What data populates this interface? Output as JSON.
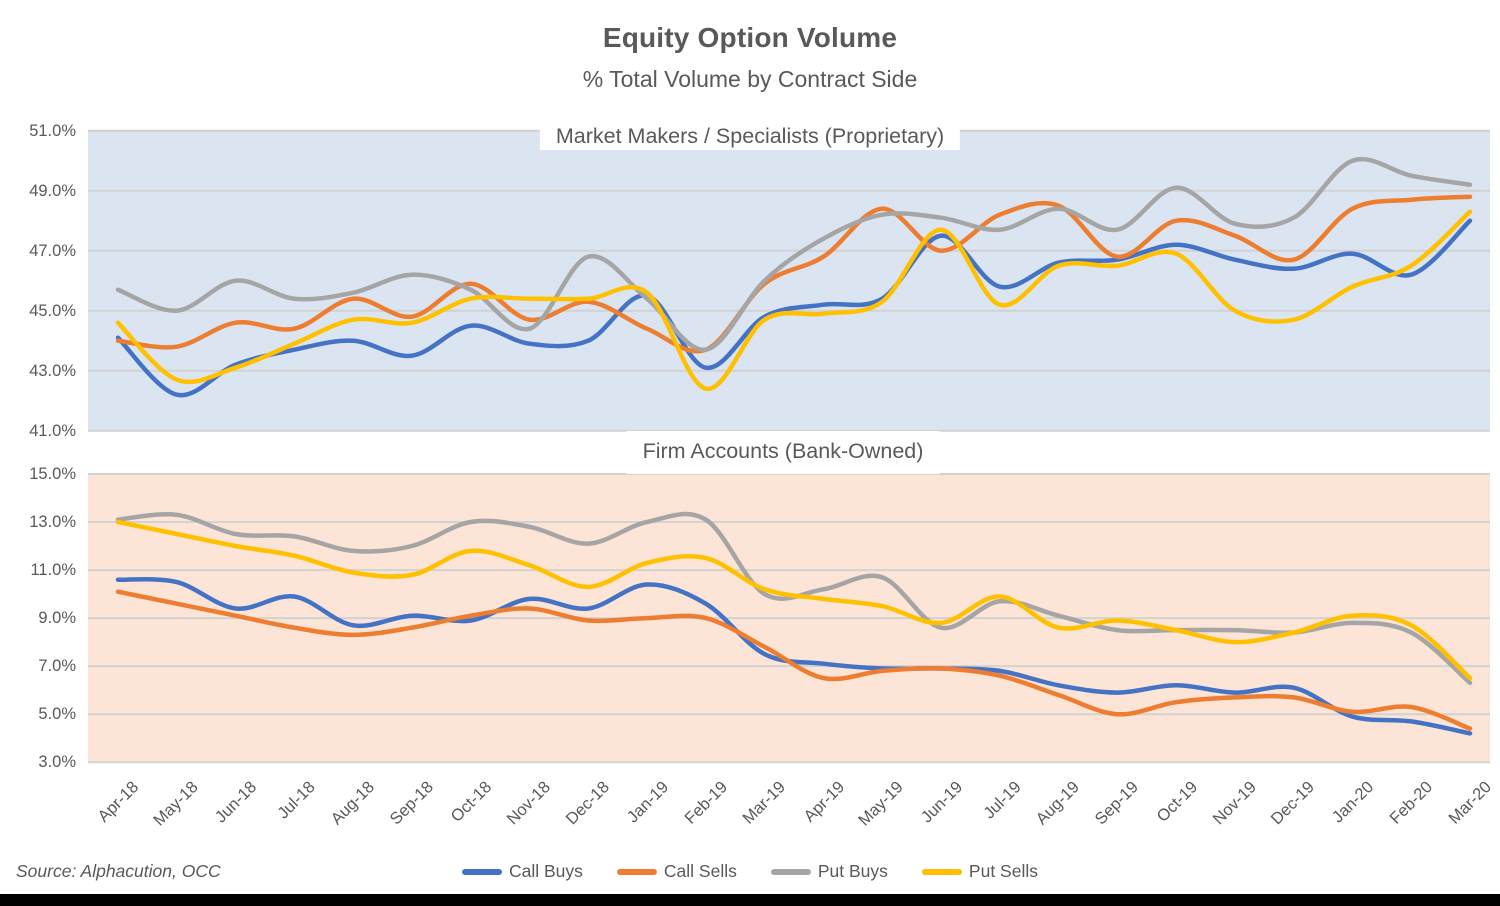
{
  "page": {
    "title": "Equity Option Volume",
    "subtitle": "% Total Volume by Contract Side",
    "source": "Source: Alphacution, OCC"
  },
  "legend": {
    "items": [
      {
        "label": "Call Buys",
        "color": "#4472C4"
      },
      {
        "label": "Call Sells",
        "color": "#ED7D31"
      },
      {
        "label": "Put Buys",
        "color": "#A5A5A5"
      },
      {
        "label": "Put Sells",
        "color": "#FFC000"
      }
    ]
  },
  "chart_data": {
    "type": "line",
    "smoothing": true,
    "x": [
      "Apr-18",
      "May-18",
      "Jun-18",
      "Jul-18",
      "Aug-18",
      "Sep-18",
      "Oct-18",
      "Nov-18",
      "Dec-18",
      "Jan-19",
      "Feb-19",
      "Mar-19",
      "Apr-19",
      "May-19",
      "Jun-19",
      "Jul-19",
      "Aug-19",
      "Sep-19",
      "Oct-19",
      "Nov-19",
      "Dec-19",
      "Jan-20",
      "Feb-20",
      "Mar-20"
    ],
    "grid": true,
    "legend_position": "bottom",
    "panels": [
      {
        "title": "Market Makers / Specialists (Proprietary)",
        "background": "#dbe5f1",
        "ylim": [
          41.0,
          51.0
        ],
        "yticks": [
          51.0,
          49.0,
          47.0,
          45.0,
          43.0,
          41.0
        ],
        "ytick_format": "percent1",
        "series": [
          {
            "name": "Call Buys",
            "color": "#4472C4",
            "values": [
              44.1,
              42.2,
              43.2,
              43.7,
              44.0,
              43.5,
              44.5,
              43.9,
              44.0,
              45.5,
              43.1,
              44.8,
              45.2,
              45.4,
              47.5,
              45.8,
              46.6,
              46.7,
              47.2,
              46.7,
              46.4,
              46.9,
              46.2,
              48.0
            ]
          },
          {
            "name": "Call Sells",
            "color": "#ED7D31",
            "values": [
              44.0,
              43.8,
              44.6,
              44.4,
              45.4,
              44.8,
              45.9,
              44.7,
              45.3,
              44.4,
              43.7,
              45.9,
              46.8,
              48.4,
              47.0,
              48.2,
              48.5,
              46.8,
              48.0,
              47.5,
              46.7,
              48.4,
              48.7,
              48.8
            ]
          },
          {
            "name": "Put Buys",
            "color": "#A5A5A5",
            "values": [
              45.7,
              45.0,
              46.0,
              45.4,
              45.6,
              46.2,
              45.7,
              44.4,
              46.8,
              45.4,
              43.7,
              46.0,
              47.4,
              48.2,
              48.1,
              47.7,
              48.4,
              47.7,
              49.1,
              47.9,
              48.1,
              50.0,
              49.5,
              49.2
            ]
          },
          {
            "name": "Put Sells",
            "color": "#FFC000",
            "values": [
              44.6,
              42.7,
              43.1,
              43.9,
              44.7,
              44.6,
              45.4,
              45.4,
              45.4,
              45.6,
              42.4,
              44.7,
              44.9,
              45.3,
              47.7,
              45.2,
              46.5,
              46.5,
              46.9,
              45.0,
              44.7,
              45.8,
              46.5,
              48.3
            ]
          }
        ]
      },
      {
        "title": "Firm Accounts (Bank-Owned)",
        "background": "#fce4d6",
        "ylim": [
          3.0,
          15.0
        ],
        "yticks": [
          15.0,
          13.0,
          11.0,
          9.0,
          7.0,
          5.0,
          3.0
        ],
        "ytick_format": "percent1",
        "series": [
          {
            "name": "Call Buys",
            "color": "#4472C4",
            "values": [
              10.6,
              10.5,
              9.4,
              9.9,
              8.7,
              9.1,
              8.9,
              9.8,
              9.4,
              10.4,
              9.6,
              7.5,
              7.1,
              6.9,
              6.9,
              6.8,
              6.2,
              5.9,
              6.2,
              5.9,
              6.1,
              4.9,
              4.7,
              4.2
            ]
          },
          {
            "name": "Call Sells",
            "color": "#ED7D31",
            "values": [
              10.1,
              9.6,
              9.1,
              8.6,
              8.3,
              8.6,
              9.1,
              9.4,
              8.9,
              9.0,
              9.0,
              7.8,
              6.5,
              6.8,
              6.9,
              6.6,
              5.8,
              5.0,
              5.5,
              5.7,
              5.7,
              5.1,
              5.3,
              4.4
            ]
          },
          {
            "name": "Put Buys",
            "color": "#A5A5A5",
            "values": [
              13.1,
              13.3,
              12.5,
              12.4,
              11.8,
              12.0,
              13.0,
              12.8,
              12.1,
              13.0,
              13.1,
              10.0,
              10.2,
              10.7,
              8.6,
              9.7,
              9.1,
              8.5,
              8.5,
              8.5,
              8.4,
              8.8,
              8.4,
              6.3
            ]
          },
          {
            "name": "Put Sells",
            "color": "#FFC000",
            "values": [
              13.0,
              12.5,
              12.0,
              11.6,
              10.9,
              10.8,
              11.8,
              11.2,
              10.3,
              11.3,
              11.5,
              10.2,
              9.8,
              9.5,
              8.8,
              9.9,
              8.6,
              8.9,
              8.5,
              8.0,
              8.4,
              9.1,
              8.7,
              6.5
            ]
          }
        ]
      }
    ]
  }
}
